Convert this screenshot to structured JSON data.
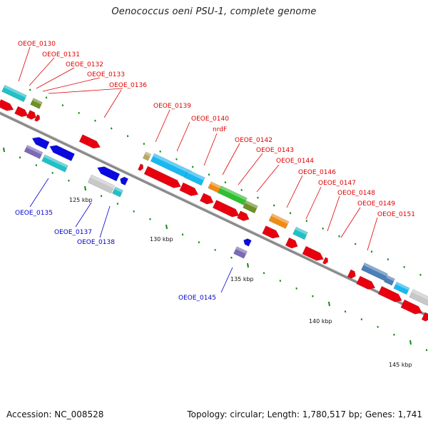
{
  "title": "Oenococcus oeni PSU-1, complete genome",
  "footer": {
    "accession": "Accession: NC_008528",
    "summary": "Topology: circular; Length: 1,780,517 bp; Genes: 1,741"
  },
  "colors": {
    "backbone": "#8a8a8a",
    "forward_label": "#e00000",
    "reverse_label": "#0000cc",
    "tick": "#118811"
  },
  "scale_labels": [
    "125 kbp",
    "130 kbp",
    "135 kbp",
    "140 kbp",
    "145 kbp"
  ],
  "forward_gene_labels": [
    "OEOE_0130",
    "OEOE_0131",
    "OEOE_0132",
    "OEOE_0133",
    "OEOE_0136",
    "OEOE_0139",
    "OEOE_0140",
    "nrdF",
    "OEOE_0142",
    "OEOE_0143",
    "OEOE_0144",
    "OEOE_0146",
    "OEOE_0147",
    "OEOE_0148",
    "OEOE_0149",
    "OEOE_0151"
  ],
  "reverse_gene_labels": [
    "OEOE_0135",
    "OEOE_0137",
    "OEOE_0138",
    "OEOE_0145"
  ]
}
